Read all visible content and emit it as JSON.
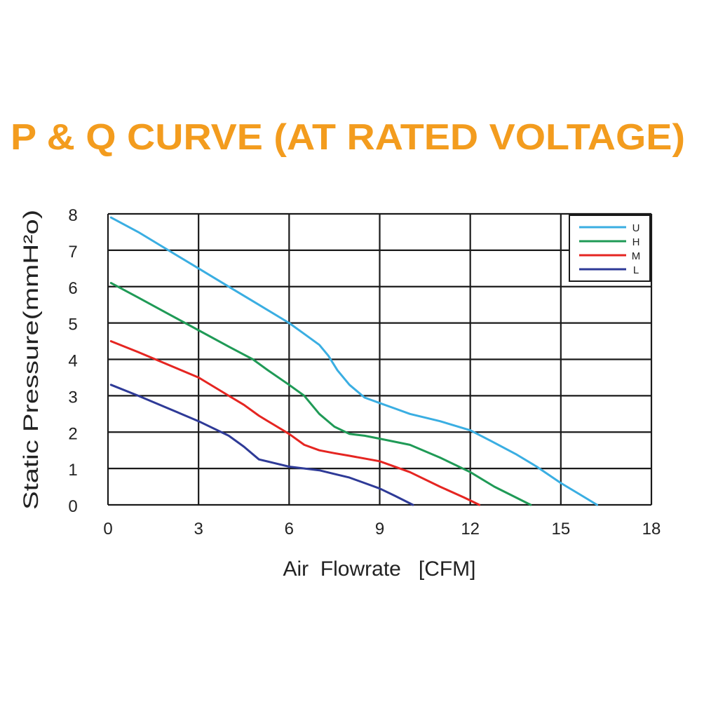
{
  "chart_data": {
    "type": "line",
    "title": "P & Q CURVE (AT RATED VOLTAGE)",
    "xlabel": "Air  Flowrate   [CFM]",
    "ylabel": "Static Pressure(mmH²o)",
    "xlim": [
      0,
      18
    ],
    "ylim": [
      0,
      8
    ],
    "xticks": [
      0,
      3,
      6,
      9,
      12,
      15,
      18
    ],
    "yticks": [
      0,
      1,
      2,
      3,
      4,
      5,
      6,
      7,
      8
    ],
    "grid": true,
    "legend_position": "top-right",
    "colors": {
      "title": "#f39c1e",
      "grid": "#1a1a1a",
      "text": "#222222"
    },
    "series": [
      {
        "name": "U",
        "color": "#3aaee2",
        "x": [
          0.1,
          1.0,
          2.0,
          3.0,
          4.0,
          5.0,
          6.0,
          6.5,
          7.0,
          7.3,
          7.6,
          8.0,
          8.5,
          9.0,
          9.5,
          10.0,
          11.0,
          12.0,
          12.7,
          13.5,
          14.2,
          15.0,
          15.6,
          16.2
        ],
        "y": [
          7.9,
          7.5,
          7.0,
          6.5,
          6.0,
          5.5,
          5.0,
          4.7,
          4.4,
          4.1,
          3.7,
          3.3,
          2.95,
          2.8,
          2.65,
          2.5,
          2.3,
          2.05,
          1.75,
          1.4,
          1.05,
          0.6,
          0.3,
          0.0
        ]
      },
      {
        "name": "H",
        "color": "#1f9a56",
        "x": [
          0.1,
          1.0,
          2.0,
          3.0,
          4.0,
          4.8,
          5.3,
          6.0,
          6.5,
          7.0,
          7.5,
          8.0,
          8.5,
          9.0,
          10.0,
          11.0,
          12.0,
          12.8,
          13.4,
          14.0
        ],
        "y": [
          6.1,
          5.7,
          5.25,
          4.8,
          4.35,
          4.0,
          3.7,
          3.3,
          3.0,
          2.5,
          2.15,
          1.95,
          1.9,
          1.82,
          1.65,
          1.3,
          0.9,
          0.5,
          0.25,
          0.0
        ]
      },
      {
        "name": "M",
        "color": "#e52521",
        "x": [
          0.1,
          1.0,
          2.0,
          3.0,
          4.0,
          4.5,
          5.0,
          5.5,
          6.0,
          6.5,
          7.0,
          7.5,
          8.0,
          9.0,
          10.0,
          11.0,
          11.8,
          12.3
        ],
        "y": [
          4.5,
          4.2,
          3.85,
          3.5,
          3.0,
          2.75,
          2.45,
          2.2,
          1.95,
          1.65,
          1.5,
          1.42,
          1.35,
          1.2,
          0.9,
          0.5,
          0.2,
          0.0
        ]
      },
      {
        "name": "L",
        "color": "#2e3a97",
        "x": [
          0.1,
          1.0,
          2.0,
          3.0,
          4.0,
          4.5,
          5.0,
          5.5,
          6.0,
          6.5,
          7.0,
          7.5,
          8.0,
          8.5,
          9.0,
          9.5,
          10.1
        ],
        "y": [
          3.3,
          3.0,
          2.65,
          2.3,
          1.9,
          1.6,
          1.25,
          1.15,
          1.05,
          1.0,
          0.95,
          0.85,
          0.75,
          0.6,
          0.45,
          0.25,
          0.0
        ]
      }
    ]
  }
}
